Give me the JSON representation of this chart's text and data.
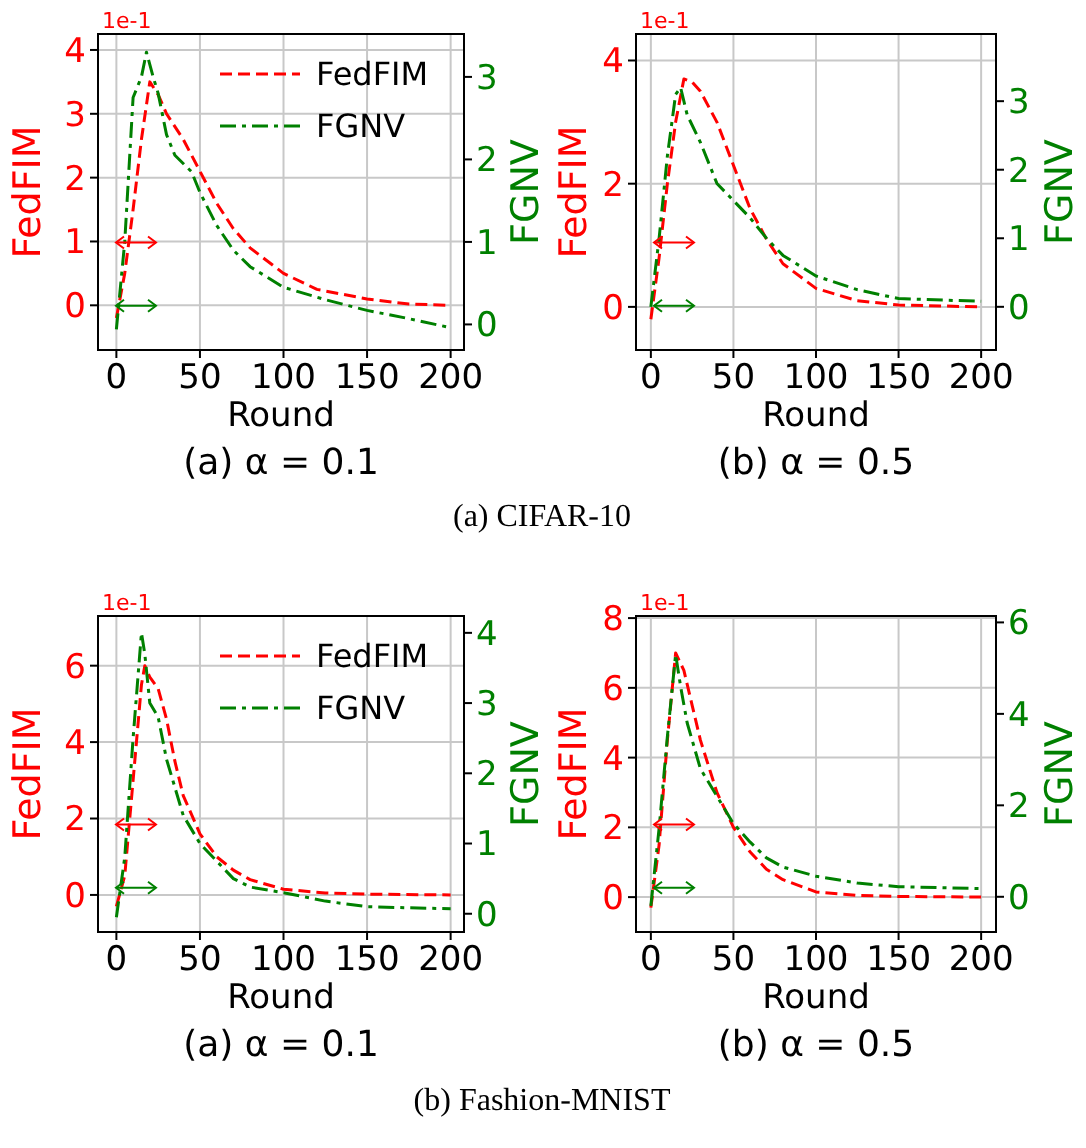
{
  "chart_data": [
    {
      "type": "line",
      "title": "(a) α = 0.1",
      "xlabel": "Round",
      "ylabel": "FedFIM",
      "y2label": "FGNV",
      "annotations": [
        "1e-1",
        "(a)  CIFAR-10"
      ],
      "xlim": [
        -11,
        208
      ],
      "xticks": [
        0,
        50,
        100,
        150,
        200
      ],
      "ylim": [
        -0.7,
        4.25
      ],
      "yticks": [
        0,
        1,
        2,
        3,
        4
      ],
      "y2lim": [
        -0.31,
        3.52
      ],
      "y2ticks": [
        0,
        1,
        2,
        3
      ],
      "grid": true,
      "legend": "top right",
      "series": [
        {
          "name": "FedFIM",
          "color": "#ff0000",
          "line_style": "dashed",
          "x": [
            0,
            5,
            10,
            15,
            20,
            25,
            30,
            40,
            50,
            60,
            70,
            80,
            100,
            120,
            150,
            175,
            200
          ],
          "values": [
            -0.2,
            0.5,
            1.5,
            2.6,
            3.5,
            3.3,
            3.0,
            2.6,
            2.1,
            1.6,
            1.2,
            0.9,
            0.5,
            0.25,
            0.1,
            0.02,
            0.0
          ]
        },
        {
          "name": "FGNV",
          "color": "#008000",
          "line_style": "dashdot",
          "axis": "y2",
          "x": [
            0,
            5,
            10,
            15,
            18,
            22,
            25,
            30,
            35,
            45,
            50,
            60,
            70,
            80,
            100,
            125,
            150,
            175,
            200
          ],
          "values": [
            -0.06,
            1.0,
            2.75,
            3.0,
            3.3,
            3.0,
            2.8,
            2.3,
            2.05,
            1.85,
            1.6,
            1.2,
            0.9,
            0.7,
            0.45,
            0.3,
            0.17,
            0.07,
            -0.04
          ]
        }
      ]
    },
    {
      "type": "line",
      "title": "(b) α = 0.5",
      "xlabel": "Round",
      "ylabel": "FedFIM",
      "y2label": "FGNV",
      "annotations": [
        "1e-1"
      ],
      "xlim": [
        -9,
        209
      ],
      "xticks": [
        0,
        50,
        100,
        150,
        200
      ],
      "ylim": [
        -0.7,
        4.43
      ],
      "yticks": [
        0,
        2,
        4
      ],
      "y2lim": [
        -0.63,
        3.98
      ],
      "y2ticks": [
        0,
        1,
        2,
        3
      ],
      "grid": true,
      "series": [
        {
          "color": "#ff0000",
          "line_style": "dashed",
          "x": [
            0,
            5,
            10,
            15,
            20,
            25,
            30,
            40,
            50,
            60,
            70,
            80,
            100,
            125,
            150,
            200
          ],
          "values": [
            -0.2,
            0.8,
            2.0,
            3.0,
            3.7,
            3.65,
            3.5,
            3.0,
            2.3,
            1.6,
            1.1,
            0.7,
            0.3,
            0.1,
            0.03,
            0.0
          ]
        },
        {
          "color": "#008000",
          "line_style": "dashdot",
          "axis": "y2",
          "x": [
            0,
            5,
            10,
            15,
            18,
            22,
            30,
            40,
            50,
            60,
            70,
            80,
            100,
            125,
            150,
            200
          ],
          "values": [
            0,
            1.0,
            2.2,
            3.1,
            3.2,
            2.8,
            2.4,
            1.8,
            1.55,
            1.3,
            1.0,
            0.75,
            0.45,
            0.25,
            0.12,
            0.08
          ]
        }
      ]
    },
    {
      "type": "line",
      "title": "(a) α = 0.1",
      "xlabel": "Round",
      "ylabel": "FedFIM",
      "y2label": "FGNV",
      "annotations": [
        "1e-1",
        "(b)  Fashion-MNIST"
      ],
      "xlim": [
        -11,
        208
      ],
      "xticks": [
        0,
        50,
        100,
        150,
        200
      ],
      "ylim": [
        -0.97,
        7.3
      ],
      "yticks": [
        0,
        2,
        4,
        6
      ],
      "y2lim": [
        -0.26,
        4.24
      ],
      "y2ticks": [
        0,
        1,
        2,
        3,
        4
      ],
      "grid": true,
      "legend": "top right",
      "series": [
        {
          "name": "FedFIM",
          "color": "#ff0000",
          "line_style": "dashed",
          "x": [
            0,
            5,
            10,
            15,
            17,
            20,
            25,
            30,
            35,
            40,
            50,
            60,
            70,
            80,
            100,
            125,
            150,
            200
          ],
          "values": [
            -0.3,
            0.5,
            3.0,
            5.5,
            6.0,
            5.7,
            5.4,
            4.6,
            3.5,
            2.6,
            1.6,
            1.0,
            0.65,
            0.4,
            0.15,
            0.05,
            0.02,
            0.0
          ]
        },
        {
          "name": "FGNV",
          "color": "#008000",
          "line_style": "dashdot",
          "axis": "y2",
          "x": [
            0,
            5,
            10,
            15,
            17,
            20,
            25,
            30,
            40,
            50,
            60,
            70,
            80,
            100,
            125,
            150,
            200
          ],
          "values": [
            -0.05,
            0.8,
            2.5,
            4.0,
            3.7,
            3.0,
            2.8,
            2.2,
            1.4,
            1.0,
            0.75,
            0.5,
            0.38,
            0.3,
            0.18,
            0.1,
            0.07
          ]
        }
      ]
    },
    {
      "type": "line",
      "title": "(b) α = 0.5",
      "xlabel": "Round",
      "ylabel": "FedFIM",
      "y2label": "FGNV",
      "annotations": [
        "1e-1"
      ],
      "xlim": [
        -9,
        209
      ],
      "xticks": [
        0,
        50,
        100,
        150,
        200
      ],
      "ylim": [
        -1.0,
        8.06
      ],
      "yticks": [
        0,
        2,
        4,
        6,
        8
      ],
      "y2lim": [
        -0.77,
        6.14
      ],
      "y2ticks": [
        0,
        2,
        4,
        6
      ],
      "grid": true,
      "series": [
        {
          "color": "#ff0000",
          "line_style": "dashed",
          "x": [
            0,
            5,
            10,
            15,
            20,
            25,
            30,
            40,
            50,
            60,
            70,
            80,
            100,
            125,
            150,
            200
          ],
          "values": [
            -0.3,
            1.5,
            4.5,
            7.0,
            6.5,
            5.5,
            4.5,
            3.0,
            2.0,
            1.3,
            0.8,
            0.5,
            0.15,
            0.05,
            0.02,
            0.0
          ]
        },
        {
          "color": "#008000",
          "line_style": "dashdot",
          "axis": "y2",
          "x": [
            0,
            5,
            10,
            15,
            18,
            22,
            30,
            40,
            50,
            60,
            70,
            80,
            100,
            125,
            150,
            200
          ],
          "values": [
            -0.2,
            1.5,
            3.5,
            5.3,
            4.6,
            3.8,
            2.8,
            2.2,
            1.6,
            1.2,
            0.85,
            0.65,
            0.45,
            0.3,
            0.22,
            0.18
          ]
        }
      ]
    }
  ]
}
